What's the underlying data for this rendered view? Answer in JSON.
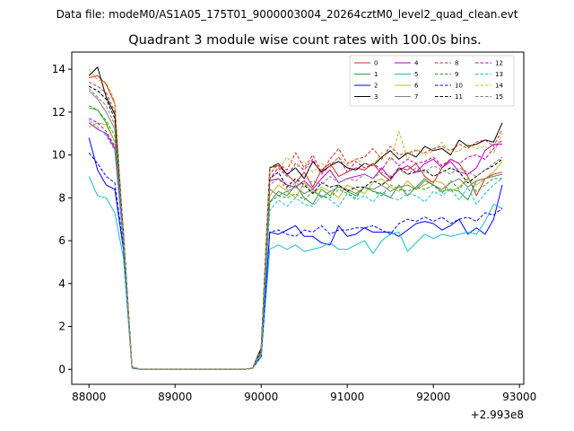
{
  "chart_data": {
    "type": "line",
    "suptitle": "Data file: modeM0/AS1A05_175T01_9000003004_20264cztM0_level2_quad_clean.evt",
    "title": "Quadrant 3 module wise count rates with 100.0s bins.",
    "xlabel": "",
    "ylabel": "",
    "x_offset_label": "+2.993e8",
    "xlim": [
      87800,
      93050
    ],
    "ylim": [
      -0.7,
      14.8
    ],
    "xticks": [
      88000,
      89000,
      90000,
      91000,
      92000,
      93000
    ],
    "xtick_labels": [
      "88000",
      "89000",
      "90000",
      "91000",
      "92000",
      "93000"
    ],
    "yticks": [
      0,
      2,
      4,
      6,
      8,
      10,
      12,
      14
    ],
    "ytick_labels": [
      "0",
      "2",
      "4",
      "6",
      "8",
      "10",
      "12",
      "14"
    ],
    "grid": false,
    "legend_placement": "top-right",
    "x_start": 88000,
    "x_step": 100,
    "series": [
      {
        "name": "0",
        "color": "#d62728",
        "dash": "solid",
        "values": [
          13.6,
          13.7,
          13.3,
          12.4,
          6.2,
          0.1,
          0,
          0,
          0,
          0,
          0,
          0,
          0,
          0,
          0,
          0,
          0,
          0,
          0,
          0.05,
          0.9,
          9.4,
          9.5,
          9.1,
          8.7,
          9.2,
          8.5,
          9.3,
          9.6,
          9.0,
          9.2,
          9.4,
          9.3,
          9.6,
          9.1,
          8.8,
          9.4,
          9.3,
          9.6,
          9.0,
          8.7,
          9.4,
          9.8,
          9.6,
          9.0,
          8.1,
          8.9,
          9.1,
          9.2
        ]
      },
      {
        "name": "1",
        "color": "#2ca02c",
        "dash": "solid",
        "values": [
          12.2,
          12.1,
          11.5,
          10.6,
          5.9,
          0.08,
          0,
          0,
          0,
          0,
          0,
          0,
          0,
          0,
          0,
          0,
          0,
          0,
          0,
          0.05,
          0.8,
          7.8,
          8.3,
          8.1,
          8.6,
          8.0,
          7.7,
          8.4,
          8.1,
          8.6,
          8.3,
          8.1,
          8.5,
          8.3,
          8.2,
          8.0,
          8.6,
          8.1,
          8.5,
          8.9,
          8.6,
          8.3,
          8.4,
          8.3,
          7.9,
          8.8,
          8.9,
          9.0,
          9.1
        ]
      },
      {
        "name": "2",
        "color": "#0000ff",
        "dash": "solid",
        "values": [
          10.8,
          9.3,
          8.6,
          8.4,
          5.6,
          0.06,
          0,
          0,
          0,
          0,
          0,
          0,
          0,
          0,
          0,
          0,
          0,
          0,
          0,
          0.05,
          0.6,
          6.4,
          6.3,
          6.5,
          6.7,
          6.2,
          6.2,
          5.9,
          5.8,
          6.7,
          6.2,
          6.3,
          6.6,
          6.4,
          6.4,
          6.4,
          6.2,
          6.5,
          6.8,
          6.9,
          6.8,
          6.5,
          6.7,
          7.0,
          6.3,
          6.6,
          6.3,
          7.0,
          8.6
        ]
      },
      {
        "name": "3",
        "color": "#000000",
        "dash": "solid",
        "values": [
          13.7,
          14.1,
          12.7,
          11.9,
          6.4,
          0.1,
          0,
          0,
          0,
          0,
          0,
          0,
          0,
          0,
          0,
          0,
          0,
          0,
          0,
          0.05,
          1.0,
          9.4,
          9.6,
          9.1,
          9.4,
          8.9,
          9.7,
          9.2,
          9.5,
          9.7,
          9.4,
          9.3,
          9.6,
          9.5,
          9.9,
          10.2,
          9.8,
          10.1,
          9.9,
          10.4,
          10.2,
          10.3,
          10.0,
          10.7,
          10.4,
          10.5,
          10.7,
          10.6,
          11.5
        ]
      },
      {
        "name": "4",
        "color": "#bf00bf",
        "dash": "solid",
        "values": [
          11.5,
          11.2,
          11.0,
          10.3,
          6.0,
          0.08,
          0,
          0,
          0,
          0,
          0,
          0,
          0,
          0,
          0,
          0,
          0,
          0,
          0,
          0.05,
          0.8,
          8.8,
          8.9,
          8.6,
          8.5,
          8.8,
          8.4,
          8.9,
          9.3,
          8.7,
          8.9,
          9.0,
          9.1,
          8.9,
          9.4,
          8.9,
          9.3,
          9.5,
          9.2,
          9.6,
          9.8,
          9.4,
          9.7,
          9.2,
          9.1,
          9.4,
          10.2,
          10.5,
          10.5
        ]
      },
      {
        "name": "5",
        "color": "#17becf",
        "dash": "solid",
        "values": [
          9.0,
          8.1,
          8.0,
          7.3,
          5.2,
          0.05,
          0,
          0,
          0,
          0,
          0,
          0,
          0,
          0,
          0,
          0,
          0,
          0,
          0,
          0.04,
          0.6,
          5.6,
          5.8,
          5.6,
          5.8,
          5.5,
          5.6,
          5.7,
          5.9,
          5.6,
          5.6,
          5.8,
          6.0,
          5.4,
          6.0,
          6.3,
          6.4,
          5.5,
          5.9,
          6.3,
          6.1,
          6.3,
          6.2,
          6.3,
          6.4,
          6.3,
          6.9,
          7.7,
          7.5
        ]
      },
      {
        "name": "6",
        "color": "#bcbd22",
        "dash": "solid",
        "values": [
          11.3,
          11.5,
          11.4,
          10.6,
          6.0,
          0.08,
          0,
          0,
          0,
          0,
          0,
          0,
          0,
          0,
          0,
          0,
          0,
          0,
          0,
          0.05,
          0.8,
          8.1,
          8.6,
          8.3,
          8.0,
          8.7,
          8.2,
          8.5,
          8.3,
          8.0,
          8.6,
          8.4,
          8.2,
          8.7,
          8.9,
          8.5,
          8.3,
          8.8,
          8.4,
          8.6,
          8.8,
          8.7,
          8.3,
          8.5,
          8.9,
          8.6,
          8.9,
          9.2,
          9.7
        ]
      },
      {
        "name": "7",
        "color": "#7f7f7f",
        "dash": "solid",
        "values": [
          13.0,
          12.6,
          12.0,
          11.2,
          6.1,
          0.08,
          0,
          0,
          0,
          0,
          0,
          0,
          0,
          0,
          0,
          0,
          0,
          0,
          0,
          0.05,
          0.8,
          8.4,
          8.1,
          8.3,
          8.5,
          8.2,
          8.4,
          8.0,
          8.3,
          8.5,
          8.4,
          8.2,
          8.5,
          8.4,
          8.6,
          8.3,
          8.5,
          8.6,
          8.4,
          8.8,
          8.6,
          8.4,
          8.7,
          8.9,
          8.5,
          8.8,
          8.9,
          9.0,
          9.1
        ]
      },
      {
        "name": "8",
        "color": "#d62728",
        "dash": "dashed",
        "values": [
          13.4,
          13.2,
          12.9,
          12.0,
          6.2,
          0.1,
          0,
          0,
          0,
          0,
          0,
          0,
          0,
          0,
          0,
          0,
          0,
          0,
          0,
          0.05,
          0.9,
          9.1,
          9.6,
          9.3,
          10.1,
          9.4,
          10.0,
          9.2,
          9.8,
          10.3,
          9.6,
          9.8,
          9.9,
          10.3,
          9.8,
          10.4,
          10.0,
          10.1,
          10.2,
          10.1,
          10.3,
          10.4,
          10.2,
          10.5,
          10.3,
          10.6,
          10.7,
          10.4,
          11.2
        ]
      },
      {
        "name": "9",
        "color": "#2ca02c",
        "dash": "dashed",
        "values": [
          12.3,
          12.1,
          11.6,
          10.9,
          5.9,
          0.08,
          0,
          0,
          0,
          0,
          0,
          0,
          0,
          0,
          0,
          0,
          0,
          0,
          0,
          0.05,
          0.8,
          7.8,
          8.1,
          8.0,
          8.2,
          7.9,
          8.3,
          8.1,
          8.0,
          8.4,
          8.2,
          8.0,
          8.5,
          8.3,
          8.1,
          8.6,
          8.4,
          8.3,
          8.5,
          8.4,
          8.6,
          8.2,
          8.8,
          8.4,
          8.9,
          8.3,
          8.6,
          8.9,
          8.9
        ]
      },
      {
        "name": "10",
        "color": "#0000ff",
        "dash": "dashed",
        "values": [
          10.1,
          9.6,
          9.0,
          8.7,
          5.7,
          0.06,
          0,
          0,
          0,
          0,
          0,
          0,
          0,
          0,
          0,
          0,
          0,
          0,
          0,
          0.05,
          0.6,
          6.4,
          6.5,
          6.3,
          6.2,
          6.5,
          6.4,
          6.7,
          6.3,
          6.5,
          6.5,
          6.6,
          6.6,
          6.7,
          6.5,
          6.3,
          6.8,
          7.0,
          6.9,
          7.1,
          6.9,
          7.1,
          6.8,
          7.0,
          7.1,
          6.9,
          7.3,
          7.2,
          7.5
        ]
      },
      {
        "name": "11",
        "color": "#000000",
        "dash": "dashed",
        "values": [
          13.2,
          13.0,
          12.6,
          11.7,
          6.3,
          0.1,
          0,
          0,
          0,
          0,
          0,
          0,
          0,
          0,
          0,
          0,
          0,
          0,
          0,
          0.05,
          0.9,
          8.9,
          9.2,
          8.5,
          8.9,
          8.6,
          8.2,
          8.7,
          8.5,
          8.6,
          8.3,
          8.5,
          8.5,
          8.8,
          8.6,
          8.9,
          9.4,
          9.1,
          9.2,
          9.3,
          9.0,
          9.2,
          9.4,
          9.2,
          8.7,
          9.0,
          9.3,
          9.5,
          9.8
        ]
      },
      {
        "name": "12",
        "color": "#bf00bf",
        "dash": "dashed",
        "values": [
          11.7,
          11.5,
          11.1,
          10.4,
          6.0,
          0.08,
          0,
          0,
          0,
          0,
          0,
          0,
          0,
          0,
          0,
          0,
          0,
          0,
          0,
          0.05,
          0.8,
          8.9,
          9.4,
          9.0,
          9.6,
          9.3,
          9.8,
          9.1,
          9.5,
          9.9,
          9.2,
          9.7,
          9.4,
          9.6,
          9.3,
          9.9,
          9.5,
          9.8,
          9.6,
          9.7,
          9.9,
          9.5,
          9.8,
          9.6,
          9.9,
          10.0,
          9.8,
          10.3,
          10.7
        ]
      },
      {
        "name": "13",
        "color": "#17becf",
        "dash": "dashed",
        "values": [
          11.6,
          11.3,
          10.9,
          10.2,
          5.9,
          0.07,
          0,
          0,
          0,
          0,
          0,
          0,
          0,
          0,
          0,
          0,
          0,
          0,
          0,
          0.05,
          0.7,
          7.4,
          7.9,
          7.6,
          8.0,
          7.7,
          7.6,
          8.1,
          7.9,
          7.6,
          8.2,
          7.9,
          8.1,
          7.8,
          8.3,
          8.0,
          7.9,
          8.2,
          8.1,
          7.8,
          8.3,
          8.1,
          8.4,
          7.9,
          8.5,
          7.7,
          8.2,
          8.6,
          8.9
        ]
      },
      {
        "name": "14",
        "color": "#bcbd22",
        "dash": "dashed",
        "values": [
          14.0,
          13.5,
          13.4,
          12.5,
          6.3,
          0.1,
          0,
          0,
          0,
          0,
          0,
          0,
          0,
          0,
          0,
          0,
          0,
          0,
          0,
          0.05,
          0.9,
          9.5,
          9.3,
          9.9,
          9.4,
          9.7,
          9.2,
          9.6,
          9.4,
          9.9,
          9.5,
          9.8,
          9.6,
          9.5,
          10.1,
          9.7,
          11.1,
          9.8,
          10.3,
          10.0,
          10.2,
          10.6,
          10.1,
          10.2,
          10.5,
          10.3,
          10.4,
          10.1,
          11.0
        ]
      },
      {
        "name": "15",
        "color": "#7f7f7f",
        "dash": "dashed",
        "values": [
          13.1,
          12.7,
          12.3,
          11.4,
          6.1,
          0.09,
          0,
          0,
          0,
          0,
          0,
          0,
          0,
          0,
          0,
          0,
          0,
          0,
          0,
          0.05,
          0.8,
          8.6,
          8.9,
          8.4,
          8.7,
          8.5,
          8.8,
          8.6,
          9.0,
          8.7,
          8.9,
          8.8,
          9.1,
          8.9,
          9.2,
          9.0,
          9.3,
          9.1,
          9.4,
          9.2,
          9.5,
          9.3,
          9.1,
          9.4,
          9.2,
          9.0,
          9.3,
          9.6,
          9.9
        ]
      }
    ]
  }
}
